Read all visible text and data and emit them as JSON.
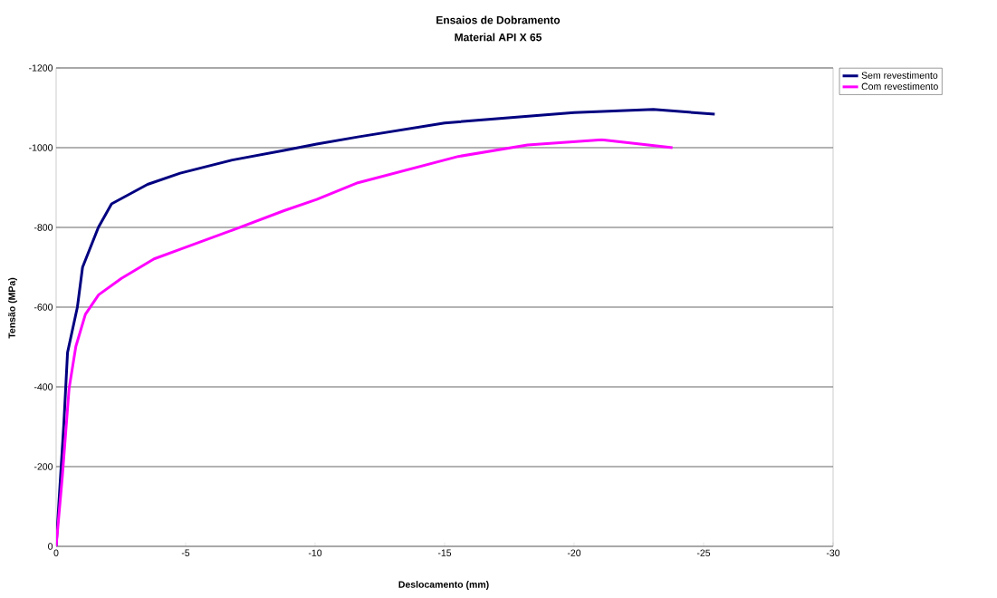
{
  "chart_data": {
    "type": "line",
    "title": "Ensaios de Dobramento",
    "subtitle": "Material API X 65",
    "xlabel": "Deslocamento (mm)",
    "ylabel": "Tensão (MPa)",
    "xlim": [
      0,
      -30
    ],
    "ylim": [
      0,
      -1200
    ],
    "xticks": [
      0,
      -5,
      -10,
      -15,
      -20,
      -25,
      -30
    ],
    "yticks": [
      0,
      -200,
      -400,
      -600,
      -800,
      -1000,
      -1200
    ],
    "grid": "y",
    "legend": "top right",
    "marker": "none",
    "line_style": "solid",
    "series": [
      {
        "name": "Sem revestimento",
        "color": "#000080",
        "x": [
          0,
          -0.3,
          -0.44,
          -0.82,
          -1.02,
          -1.63,
          -2.14,
          -3.53,
          -4.79,
          -6.8,
          -8.8,
          -10.06,
          -11.65,
          -15,
          -18.45,
          -20,
          -23.06,
          -25.43
        ],
        "values": [
          0,
          -310,
          -486,
          -600,
          -700,
          -800,
          -859,
          -908,
          -936,
          -969,
          -993,
          -1009,
          -1027,
          -1062,
          -1080,
          -1088,
          -1096,
          -1084
        ]
      },
      {
        "name": "Com revestimento",
        "color": "#ff00ff",
        "x": [
          0,
          -0.24,
          -0.5,
          -0.76,
          -1.13,
          -1.64,
          -2.52,
          -3.78,
          -4.79,
          -6.8,
          -8.8,
          -10.06,
          -11.65,
          -15.53,
          -18.2,
          -21.07,
          -23.8
        ],
        "values": [
          0,
          -176,
          -396,
          -501,
          -582,
          -631,
          -672,
          -721,
          -745,
          -793,
          -842,
          -870,
          -912,
          -978,
          -1007,
          -1020,
          -1000
        ]
      }
    ]
  }
}
